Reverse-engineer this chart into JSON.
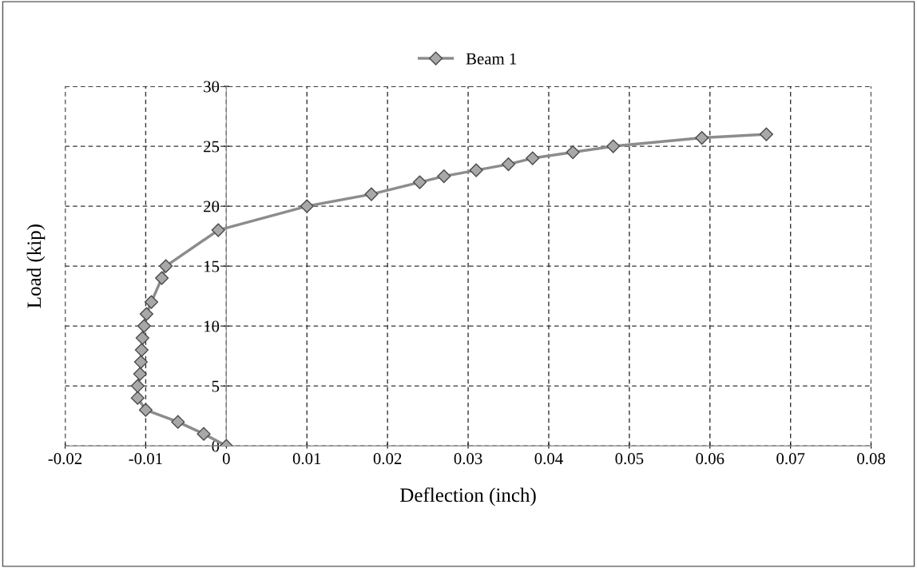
{
  "chart_data": {
    "type": "line",
    "xlabel": "Deflection (inch)",
    "ylabel": "Load (kip)",
    "series": [
      {
        "name": "Beam 1",
        "color": "#8c8c8c",
        "x": [
          0,
          -0.0028,
          -0.006,
          -0.01,
          -0.011,
          -0.011,
          -0.0107,
          -0.0106,
          -0.0105,
          -0.0104,
          -0.0102,
          -0.0099,
          -0.0093,
          -0.008,
          -0.0075,
          -0.001,
          0.01,
          0.018,
          0.024,
          0.027,
          0.031,
          0.035,
          0.038,
          0.043,
          0.048,
          0.059,
          0.067
        ],
        "values": [
          0,
          1,
          2,
          3,
          4,
          5,
          6,
          7,
          8,
          9,
          10,
          11,
          12,
          14,
          15,
          18,
          20,
          21,
          22,
          22.5,
          23,
          23.5,
          24,
          24.5,
          25,
          25.7,
          26
        ]
      }
    ],
    "xlim": [
      -0.02,
      0.08
    ],
    "xticks": [
      -0.02,
      -0.01,
      0,
      0.01,
      0.02,
      0.03,
      0.04,
      0.05,
      0.06,
      0.07,
      0.08
    ],
    "ylim": [
      0,
      30
    ],
    "yticks": [
      0,
      5,
      10,
      15,
      20,
      25,
      30
    ],
    "grid": true,
    "legend": "top",
    "marker": "diamond",
    "line_style": "solid"
  }
}
